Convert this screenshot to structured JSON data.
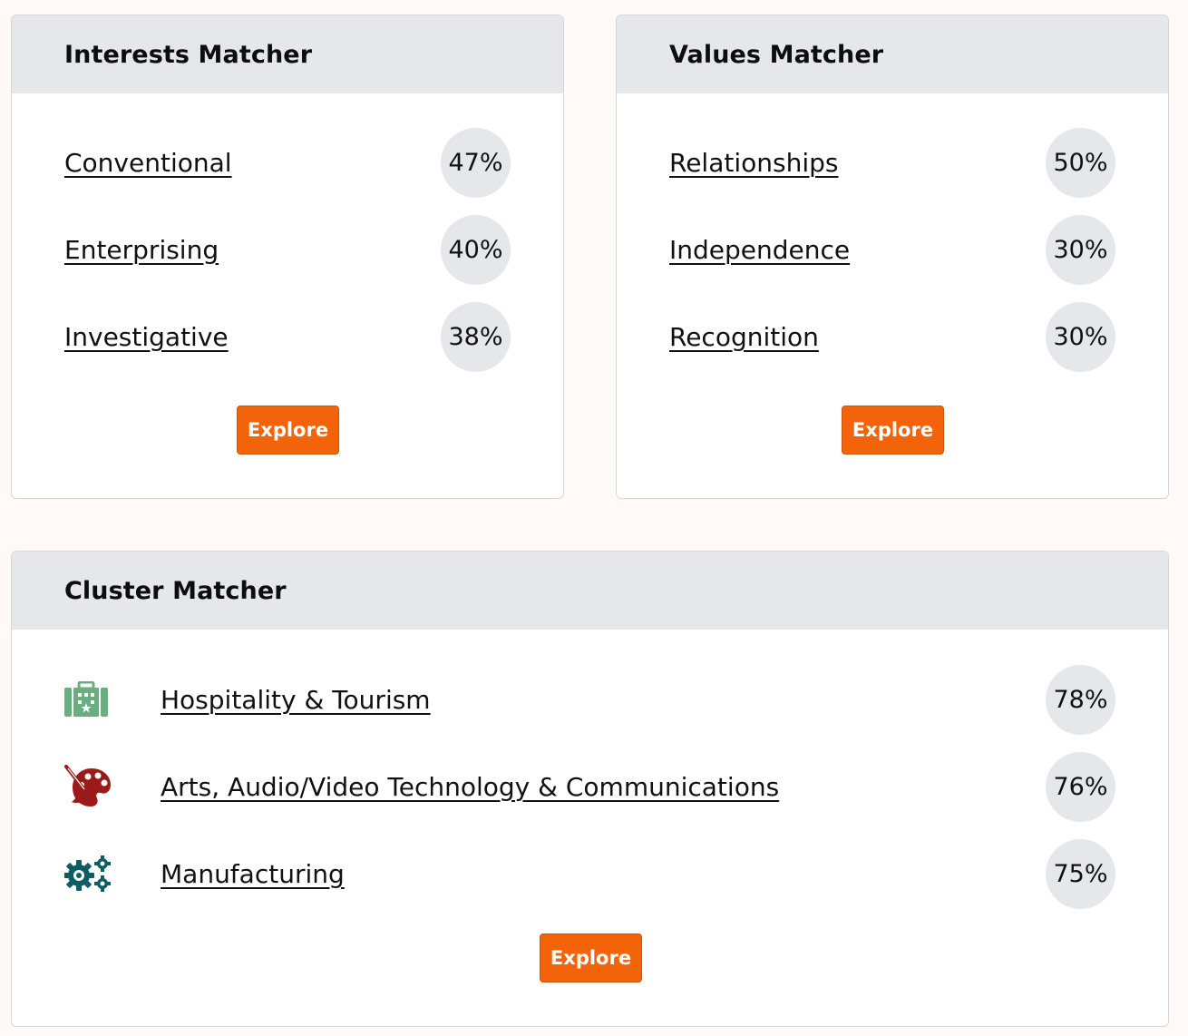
{
  "interests": {
    "title": "Interests Matcher",
    "items": [
      {
        "label": "Conventional",
        "percent": "47%"
      },
      {
        "label": "Enterprising",
        "percent": "40%"
      },
      {
        "label": "Investigative",
        "percent": "38%"
      }
    ],
    "button": "Explore"
  },
  "values": {
    "title": "Values Matcher",
    "items": [
      {
        "label": "Relationships",
        "percent": "50%"
      },
      {
        "label": "Independence",
        "percent": "30%"
      },
      {
        "label": "Recognition",
        "percent": "30%"
      }
    ],
    "button": "Explore"
  },
  "cluster": {
    "title": "Cluster Matcher",
    "items": [
      {
        "label": "Hospitality & Tourism",
        "percent": "78%",
        "icon": "luggage-icon",
        "icon_color": "#6aae7f"
      },
      {
        "label": "Arts, Audio/Video Technology & Communications",
        "percent": "76%",
        "icon": "palette-brush-icon",
        "icon_color": "#9b1b1b"
      },
      {
        "label": "Manufacturing",
        "percent": "75%",
        "icon": "gears-icon",
        "icon_color": "#0f5c63"
      }
    ],
    "button": "Explore"
  },
  "colors": {
    "background": "#fffaf7",
    "card_header": "#e6e7eb",
    "accent_button": "#f2630a",
    "percent_circle": "#e6e7eb"
  }
}
